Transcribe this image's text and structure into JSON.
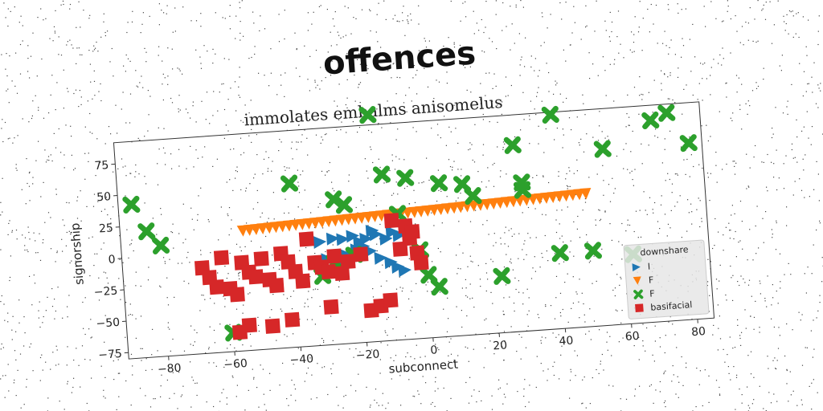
{
  "title": "offences",
  "chart_data": {
    "type": "scatter",
    "title": "immolates embalms anisomelus",
    "xlabel": "subconnect",
    "ylabel": "signorship",
    "xlim": [
      -92,
      85
    ],
    "ylim": [
      -80,
      92
    ],
    "xticks": [
      -80,
      -60,
      -40,
      -20,
      0,
      20,
      40,
      60,
      80
    ],
    "yticks": [
      -75,
      -50,
      -25,
      0,
      25,
      50,
      75
    ],
    "grid": false,
    "legend": {
      "title": "downshare",
      "placement": "lower-right"
    },
    "series": [
      {
        "name": "I",
        "marker": "triangle-right",
        "color": "#1f77b4",
        "x": [
          -32,
          -28,
          -25,
          -22,
          -20,
          -18,
          -16,
          -15,
          -12,
          -10,
          -8,
          -6,
          -30,
          -27,
          -24,
          -21,
          -19,
          -17,
          -14,
          -11,
          -9,
          -7,
          -26,
          -23
        ],
        "y": [
          2,
          4,
          3,
          5,
          0,
          2,
          8,
          5,
          1,
          6,
          3,
          7,
          -12,
          -16,
          -10,
          -6,
          -4,
          -8,
          -14,
          -18,
          -22,
          -25,
          -20,
          -14
        ]
      },
      {
        "name": "F",
        "marker": "triangle-down",
        "color": "#ff7f0e",
        "x": [
          -55,
          -53,
          -51,
          -49,
          -47,
          -45,
          -43,
          -41,
          -39,
          -37,
          -35,
          -33,
          -31,
          -29,
          -27,
          -25,
          -23,
          -21,
          -19,
          -17,
          -15,
          -13,
          -11,
          -9,
          -7,
          -5,
          -3,
          -1,
          1,
          3,
          5,
          7,
          9,
          11,
          13,
          15,
          17,
          19,
          21,
          23,
          25,
          27,
          29,
          31,
          33,
          35,
          37,
          39,
          41,
          43,
          45,
          47,
          49
        ],
        "y": [
          15,
          15.2,
          15.4,
          15.6,
          15.8,
          16,
          16.2,
          16.4,
          16.6,
          16.8,
          17,
          17.2,
          17.4,
          17.6,
          17.8,
          18,
          18.2,
          18.4,
          18.6,
          18.8,
          19,
          19.2,
          19.4,
          19.6,
          19.8,
          20,
          20.2,
          20.4,
          20.6,
          20.8,
          21,
          21.2,
          21.4,
          21.6,
          21.8,
          22,
          22.2,
          22.4,
          22.6,
          22.8,
          23,
          23.2,
          23.4,
          23.6,
          23.8,
          24,
          24.2,
          24.4,
          24.6,
          24.8,
          25,
          25.2,
          25.4
        ]
      },
      {
        "name": "F",
        "marker": "x",
        "color": "#2ca02c",
        "x": [
          -88,
          -84,
          -80,
          -60,
          -40,
          -32,
          -28,
          -27,
          -24,
          -22,
          -15,
          -12,
          -8,
          -5,
          -2,
          0,
          3,
          5,
          12,
          15,
          22,
          28,
          30,
          30,
          40,
          40,
          50,
          55,
          62,
          70,
          75,
          81
        ],
        "y": [
          42,
          20,
          8,
          -65,
          50,
          -25,
          -15,
          35,
          30,
          -10,
          100,
          52,
          20,
          48,
          -10,
          -30,
          -40,
          42,
          40,
          30,
          -35,
          68,
          38,
          32,
          -20,
          90,
          -20,
          60,
          -25,
          80,
          85,
          60
        ]
      },
      {
        "name": "basifacial",
        "marker": "square",
        "color": "#d62728",
        "x": [
          -68,
          -66,
          -64,
          -62,
          -60,
          -58,
          -56,
          -54,
          -52,
          -50,
          -48,
          -46,
          -44,
          -42,
          -40,
          -38,
          -36,
          -34,
          -32,
          -30,
          -28,
          -26,
          -24,
          -20,
          -18,
          -15,
          -12,
          -10,
          -8,
          -6,
          -5,
          -4,
          -3,
          -2,
          -55,
          -58,
          -48,
          -42,
          -30
        ],
        "y": [
          -12,
          -20,
          -28,
          -5,
          -30,
          -35,
          -10,
          -18,
          -22,
          -8,
          -25,
          -30,
          -5,
          -12,
          -20,
          -28,
          5,
          -14,
          -18,
          -22,
          -10,
          -24,
          -15,
          -10,
          -55,
          -52,
          -48,
          15,
          -8,
          10,
          0,
          5,
          -12,
          -20,
          -60,
          -65,
          -62,
          -58,
          -50
        ]
      }
    ]
  }
}
